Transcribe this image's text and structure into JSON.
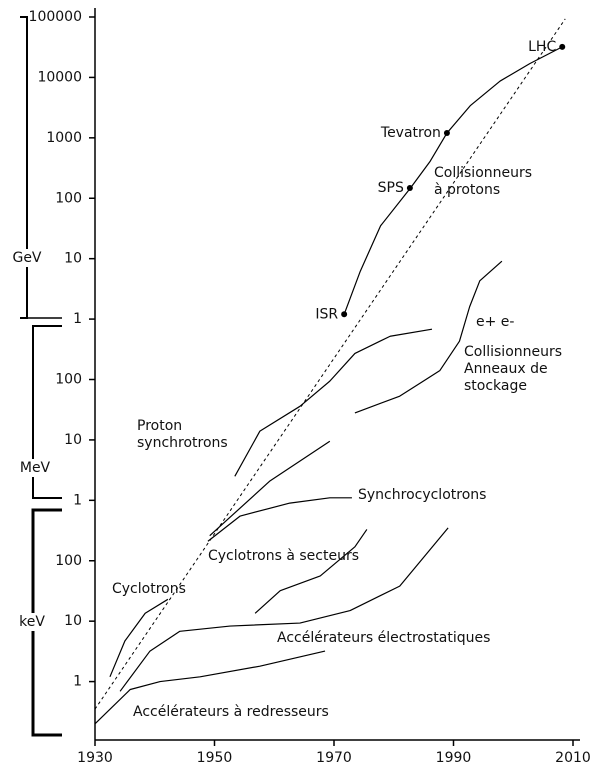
{
  "chart_data": {
    "type": "line",
    "log_y": true,
    "color": "#000000",
    "xlim": [
      1930,
      2010
    ],
    "xticks": [
      1930,
      1950,
      1970,
      1990,
      2010
    ],
    "ylim": [
      1e-07,
      100000
    ],
    "yticks": [
      100000,
      10000,
      1000,
      100,
      10,
      1,
      {
        "value": 0.1,
        "label": "100"
      },
      {
        "value": 0.01,
        "label": "10"
      },
      {
        "value": 0.001,
        "label": "1"
      },
      {
        "value": 0.0001,
        "label": "100"
      },
      {
        "value": 1e-05,
        "label": "10"
      },
      {
        "value": 1e-06,
        "label": "1"
      }
    ],
    "y_units": [
      {
        "label": "GeV"
      },
      {
        "label": "MeV"
      },
      {
        "label": "keV"
      }
    ],
    "points": [
      {
        "name": "ISR",
        "x": 1971.7,
        "y": 1.2
      },
      {
        "name": "SPS",
        "x": 1982.7,
        "y": 148
      },
      {
        "name": "Tevatron",
        "x": 1988.9,
        "y": 1200
      },
      {
        "name": "LHC",
        "x": 2008.2,
        "y": 32000
      }
    ],
    "series": [
      {
        "label": [
          "Collisionneurs",
          "à protons"
        ],
        "x": [
          1971.7,
          1974.4,
          1977.8,
          1982.8,
          1986.1,
          1988.9,
          1992.8,
          1997.8,
          2002.8,
          2008.2
        ],
        "values": [
          1.2,
          6.2,
          35,
          148,
          410,
          1200,
          3400,
          8700,
          17000,
          32000
        ]
      },
      {
        "label": [
          "e+ e-",
          "Collisionneurs",
          "Anneaux de",
          "stockage"
        ],
        "x": [
          1973.5,
          1981.0,
          1987.7,
          1991.0,
          1992.7,
          1994.4,
          1998.1
        ],
        "values": [
          0.028,
          0.053,
          0.14,
          0.43,
          1.6,
          4.3,
          9.1
        ]
      },
      {
        "label": [
          "Proton",
          "synchrotrons"
        ],
        "x": [
          1953.4,
          1957.6,
          1964.3,
          1969.3,
          1973.5,
          1979.4,
          1986.4
        ],
        "values": [
          0.0025,
          0.014,
          0.036,
          0.094,
          0.27,
          0.52,
          0.68
        ]
      },
      {
        "x": [
          1949.2,
          1959.3,
          1969.3
        ],
        "values": [
          0.00026,
          0.0021,
          0.0095
        ]
      },
      {
        "label": [
          "Synchrocyclotrons"
        ],
        "x": [
          1948.9,
          1954.3,
          1962.6,
          1969.3,
          1973.0
        ],
        "values": [
          0.00021,
          0.00055,
          0.0009,
          0.0011,
          0.0011
        ]
      },
      {
        "label": [
          "Cyclotrons"
        ],
        "x": [
          1932.5,
          1935.0,
          1938.4,
          1942.2
        ],
        "values": [
          1.2e-06,
          4.7e-06,
          1.35e-05,
          2.3e-05
        ]
      },
      {
        "label": [
          "Cyclotrons à secteurs"
        ],
        "x": [
          1956.8,
          1961.0,
          1967.7,
          1973.5,
          1975.5
        ],
        "values": [
          1.35e-05,
          3.2e-05,
          5.6e-05,
          0.00017,
          0.00033
        ]
      },
      {
        "label": [
          "Accélérateurs électrostatiques"
        ],
        "x": [
          1934.2,
          1939.2,
          1944.2,
          1952.6,
          1964.3,
          1972.7,
          1981.0,
          1989.1
        ],
        "values": [
          6.9e-07,
          3.2e-06,
          6.8e-06,
          8.3e-06,
          9.3e-06,
          1.5e-05,
          3.8e-05,
          0.00035
        ]
      },
      {
        "label": [
          "Accélérateurs à redresseurs"
        ],
        "x": [
          1930,
          1935.9,
          1940.9,
          1947.6,
          1957.6,
          1968.5
        ],
        "values": [
          2e-07,
          7.4e-07,
          1e-06,
          1.2e-06,
          1.8e-06,
          3.2e-06
        ]
      },
      {
        "dashed": true,
        "x": [
          1930,
          2008.7
        ],
        "values": [
          3.5e-07,
          93000
        ]
      }
    ]
  }
}
